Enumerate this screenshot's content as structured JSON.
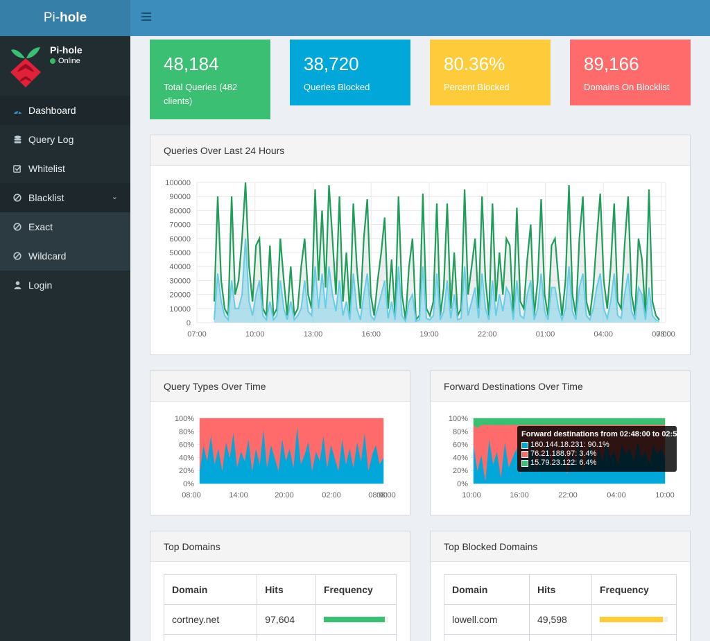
{
  "header": {
    "brand_light": "Pi-",
    "brand_bold": "hole"
  },
  "user": {
    "name": "Pi-hole",
    "status": "Online"
  },
  "sidebar": {
    "items": [
      {
        "label": "Dashboard",
        "icon": "dashboard-icon"
      },
      {
        "label": "Query Log",
        "icon": "database-icon"
      },
      {
        "label": "Whitelist",
        "icon": "check-square-icon"
      },
      {
        "label": "Blacklist",
        "icon": "ban-icon"
      },
      {
        "label": "Exact",
        "icon": "ban-icon"
      },
      {
        "label": "Wildcard",
        "icon": "ban-icon"
      },
      {
        "label": "Login",
        "icon": "user-icon"
      }
    ]
  },
  "stats": [
    {
      "value": "48,184",
      "label": "Total Queries (482 clients)",
      "color": "#3bbf72"
    },
    {
      "value": "38,720",
      "label": "Queries Blocked",
      "color": "#00a7d8"
    },
    {
      "value": "80.36%",
      "label": "Percent Blocked",
      "color": "#fecc3b"
    },
    {
      "value": "89,166",
      "label": "Domains On Blocklist",
      "color": "#ff6b6b"
    }
  ],
  "queries_chart": {
    "title": "Queries Over Last 24 Hours"
  },
  "query_types_chart": {
    "title": "Query Types Over Time"
  },
  "forward_chart": {
    "title": "Forward Destinations Over Time",
    "tooltip": {
      "title": "Forward destinations from 02:48:00 to 02:5",
      "rows": [
        {
          "text": "160.144.18.231: 90.1%",
          "color": "#00a7d8"
        },
        {
          "text": "76.21.188.97: 3.4%",
          "color": "#ff6b6b"
        },
        {
          "text": "15.79.23.122: 6.4%",
          "color": "#3bbf72"
        }
      ]
    }
  },
  "top_domains": {
    "title": "Top Domains",
    "headers": [
      "Domain",
      "Hits",
      "Frequency"
    ],
    "rows": [
      {
        "domain": "cortney.net",
        "hits": "97,604",
        "freq": 0.95
      }
    ],
    "bar_color": "#3bbf72"
  },
  "top_blocked": {
    "title": "Top Blocked Domains",
    "headers": [
      "Domain",
      "Hits",
      "Frequency"
    ],
    "rows": [
      {
        "domain": "lowell.com",
        "hits": "49,598",
        "freq": 0.93
      }
    ],
    "bar_color": "#fecc3b"
  },
  "chart_data": [
    {
      "type": "line",
      "title": "Queries Over Last 24 Hours",
      "x_ticks": [
        "07:00",
        "10:00",
        "13:00",
        "16:00",
        "19:00",
        "22:00",
        "01:00",
        "04:00",
        "07:00",
        "08:00"
      ],
      "y_ticks": [
        0,
        10000,
        20000,
        30000,
        40000,
        50000,
        60000,
        70000,
        80000,
        90000,
        100000
      ],
      "ylim": [
        0,
        100000
      ],
      "series": [
        {
          "color": "#1e9e5a",
          "values": [
            15000,
            90000,
            30000,
            10000,
            5000,
            90000,
            20000,
            30000,
            60000,
            100000,
            40000,
            15000,
            55000,
            60000,
            10000,
            5000,
            55000,
            5000,
            10000,
            60000,
            30000,
            5000,
            40000,
            5000,
            10000,
            40000,
            60000,
            20000,
            10000,
            95000,
            30000,
            80000,
            25000,
            98000,
            60000,
            20000,
            90000,
            15000,
            50000,
            5000,
            85000,
            40000,
            10000,
            60000,
            88000,
            20000,
            5000,
            30000,
            50000,
            75000,
            10000,
            45000,
            5000,
            90000,
            20000,
            2000,
            40000,
            60000,
            2000,
            5000,
            92000,
            10000,
            5000,
            15000,
            85000,
            5000,
            25000,
            85000,
            10000,
            50000,
            5000,
            10000,
            95000,
            20000,
            40000,
            60000,
            10000,
            90000,
            30000,
            5000,
            85000,
            15000,
            50000,
            20000,
            60000,
            55000,
            5000,
            82000,
            15000,
            10000,
            45000,
            70000,
            5000,
            30000,
            88000,
            20000,
            5000,
            55000,
            60000,
            30000,
            5000,
            30000,
            98000,
            20000,
            5000,
            60000,
            90000,
            15000,
            5000,
            25000,
            60000,
            92000,
            30000,
            10000,
            40000,
            85000,
            15000,
            10000,
            55000,
            90000,
            20000,
            5000,
            60000,
            45000,
            5000,
            95000,
            15000,
            5000,
            2000
          ]
        },
        {
          "color": "#67cde6",
          "values": [
            2000,
            35000,
            15000,
            5000,
            2000,
            30000,
            10000,
            10000,
            20000,
            60000,
            15000,
            5000,
            20000,
            30000,
            5000,
            2000,
            15000,
            2000,
            5000,
            30000,
            10000,
            2000,
            15000,
            2000,
            5000,
            10000,
            30000,
            8000,
            5000,
            40000,
            10000,
            35000,
            10000,
            40000,
            20000,
            8000,
            30000,
            5000,
            15000,
            2000,
            35000,
            10000,
            2000,
            20000,
            35000,
            5000,
            2000,
            10000,
            20000,
            30000,
            3000,
            15000,
            2000,
            40000,
            5000,
            1000,
            15000,
            20000,
            1000,
            2000,
            40000,
            3000,
            2000,
            5000,
            35000,
            2000,
            8000,
            30000,
            3000,
            20000,
            2000,
            3000,
            40000,
            5000,
            15000,
            25000,
            3000,
            35000,
            10000,
            2000,
            30000,
            5000,
            20000,
            8000,
            25000,
            20000,
            2000,
            30000,
            5000,
            3000,
            20000,
            30000,
            2000,
            10000,
            35000,
            8000,
            2000,
            25000,
            25000,
            10000,
            2000,
            10000,
            40000,
            8000,
            2000,
            25000,
            35000,
            5000,
            2000,
            10000,
            25000,
            35000,
            10000,
            3000,
            15000,
            35000,
            5000,
            3000,
            20000,
            35000,
            8000,
            2000,
            25000,
            20000,
            2000,
            25000,
            5000,
            2000,
            1000
          ]
        }
      ]
    },
    {
      "type": "area",
      "title": "Query Types Over Time",
      "x_ticks": [
        "08:00",
        "14:00",
        "20:00",
        "02:00",
        "08:00",
        "08:00"
      ],
      "y_ticks": [
        "0%",
        "20%",
        "40%",
        "60%",
        "80%",
        "100%"
      ],
      "ylim": [
        0,
        100
      ],
      "series": [
        {
          "color": "#00a7d8",
          "values": [
            20,
            60,
            35,
            75,
            30,
            55,
            20,
            65,
            40,
            80,
            25,
            50,
            35,
            70,
            20,
            55,
            30,
            85,
            25,
            60,
            40,
            20,
            70,
            35,
            55,
            25,
            90,
            30,
            45,
            65,
            20,
            50,
            35,
            75,
            25,
            60,
            40,
            20,
            70,
            30,
            55,
            25,
            65,
            35,
            80,
            20,
            45,
            60,
            30,
            40
          ]
        },
        {
          "color": "#ff6b6b",
          "values": [
            80,
            40,
            65,
            25,
            70,
            45,
            80,
            35,
            60,
            20,
            75,
            50,
            65,
            30,
            80,
            45,
            70,
            15,
            75,
            40,
            60,
            80,
            30,
            65,
            45,
            75,
            10,
            70,
            55,
            35,
            80,
            50,
            65,
            25,
            75,
            40,
            60,
            80,
            30,
            70,
            45,
            75,
            35,
            65,
            20,
            80,
            55,
            40,
            70,
            60
          ]
        }
      ]
    },
    {
      "type": "area",
      "title": "Forward Destinations Over Time",
      "x_ticks": [
        "10:00",
        "16:00",
        "22:00",
        "04:00",
        "10:00"
      ],
      "y_ticks": [
        "0%",
        "20%",
        "40%",
        "60%",
        "80%",
        "100%"
      ],
      "ylim": [
        0,
        100
      ],
      "series": [
        {
          "name": "160.144.18.231",
          "color": "#00a7d8",
          "values": [
            60,
            20,
            45,
            5,
            70,
            30,
            50,
            10,
            65,
            25,
            40,
            55,
            15,
            60,
            30,
            70,
            20,
            50,
            35,
            65,
            25,
            55,
            40,
            60,
            15,
            50,
            30,
            70,
            20,
            45,
            60,
            25,
            55,
            35,
            65,
            40,
            50,
            30,
            60,
            45,
            55,
            35,
            65,
            40,
            50,
            30,
            60,
            45,
            55,
            40
          ]
        },
        {
          "name": "76.21.188.97",
          "color": "#ff6b6b",
          "values": [
            30,
            65,
            45,
            85,
            20,
            60,
            40,
            80,
            25,
            65,
            50,
            35,
            75,
            30,
            60,
            20,
            70,
            40,
            55,
            25,
            65,
            35,
            50,
            30,
            75,
            40,
            60,
            20,
            70,
            45,
            30,
            65,
            35,
            55,
            25,
            50,
            40,
            60,
            30,
            45,
            35,
            55,
            25,
            50,
            40,
            60,
            30,
            45,
            35,
            50
          ]
        },
        {
          "name": "15.79.23.122",
          "color": "#3bbf72",
          "values": [
            10,
            15,
            10,
            10,
            10,
            10,
            10,
            10,
            10,
            10,
            10,
            10,
            10,
            10,
            10,
            10,
            10,
            10,
            10,
            10,
            10,
            10,
            10,
            10,
            10,
            10,
            10,
            10,
            10,
            10,
            10,
            10,
            10,
            10,
            10,
            10,
            10,
            10,
            10,
            10,
            10,
            10,
            10,
            10,
            10,
            10,
            10,
            10,
            10,
            10
          ]
        }
      ]
    }
  ]
}
